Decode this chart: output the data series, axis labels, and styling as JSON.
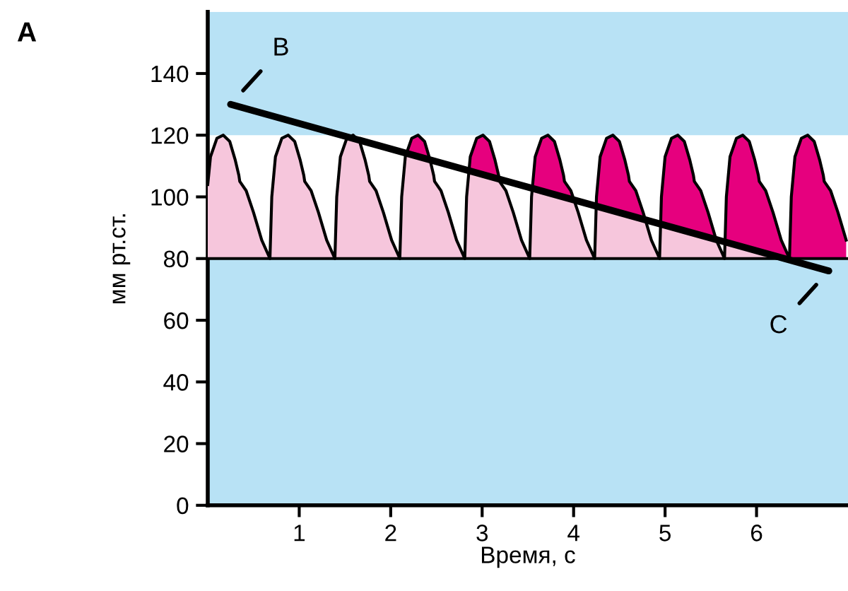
{
  "chart_data": {
    "type": "area",
    "xlabel": "Время, с",
    "ylabel": "мм рт.ст.",
    "xlim": [
      0,
      7
    ],
    "ylim": [
      0,
      160
    ],
    "xticks": [
      1,
      2,
      3,
      4,
      5,
      6
    ],
    "yticks": [
      0,
      20,
      40,
      60,
      80,
      100,
      120,
      140
    ],
    "grid": false,
    "legend": false,
    "bands": [
      {
        "axis": "y",
        "from": 0,
        "to": 80,
        "color": "#b8e2f5"
      },
      {
        "axis": "y",
        "from": 120,
        "to": 160,
        "color": "#b8e2f5"
      }
    ],
    "ref_lines": [
      {
        "axis": "y",
        "value": 80,
        "color": "#000000"
      }
    ],
    "annotations": [
      "A",
      {
        "text": "B",
        "x": 0.25,
        "y": 130
      },
      {
        "text": "C",
        "x": 6.79,
        "y": 76
      }
    ],
    "series": [
      {
        "color": "#e6007e",
        "x": [
          0,
          0.03,
          0.1,
          0.17,
          0.24,
          0.3,
          0.34,
          0.35,
          0.42,
          0.5,
          0.59,
          0.68,
          0.7,
          0.74,
          0.81,
          0.88,
          0.95,
          1.01,
          1.05,
          1.06,
          1.13,
          1.21,
          1.3,
          1.39,
          1.41,
          1.45,
          1.52,
          1.59,
          1.66,
          1.72,
          1.76,
          1.77,
          1.84,
          1.92,
          2.01,
          2.1,
          2.12,
          2.16,
          2.23,
          2.3,
          2.37,
          2.43,
          2.47,
          2.48,
          2.55,
          2.63,
          2.72,
          2.81,
          2.83,
          2.87,
          2.94,
          3.01,
          3.08,
          3.14,
          3.18,
          3.19,
          3.26,
          3.34,
          3.43,
          3.52,
          3.54,
          3.58,
          3.65,
          3.72,
          3.79,
          3.85,
          3.89,
          3.9,
          3.97,
          4.05,
          4.14,
          4.23,
          4.25,
          4.29,
          4.36,
          4.43,
          4.5,
          4.56,
          4.6,
          4.61,
          4.68,
          4.76,
          4.85,
          4.94,
          4.96,
          5.0,
          5.07,
          5.14,
          5.21,
          5.27,
          5.31,
          5.32,
          5.39,
          5.47,
          5.56,
          5.65,
          5.67,
          5.71,
          5.78,
          5.85,
          5.92,
          5.98,
          6.02,
          6.03,
          6.1,
          6.18,
          6.27,
          6.36,
          6.38,
          6.42,
          6.49,
          6.56,
          6.63,
          6.69,
          6.73,
          6.74,
          6.81,
          6.89,
          6.98
        ],
        "values": [
          104,
          113,
          119,
          120,
          118,
          112,
          107,
          105,
          102,
          95,
          86,
          80,
          100,
          113,
          119,
          120,
          118,
          112,
          107,
          105,
          102,
          95,
          86,
          80,
          100,
          113,
          119,
          120,
          118,
          112,
          107,
          105,
          102,
          95,
          86,
          80,
          100,
          113,
          119,
          120,
          118,
          112,
          107,
          105,
          102,
          95,
          86,
          80,
          100,
          113,
          119,
          120,
          118,
          112,
          107,
          105,
          102,
          95,
          86,
          80,
          100,
          113,
          119,
          120,
          118,
          112,
          107,
          105,
          102,
          95,
          86,
          80,
          100,
          113,
          119,
          120,
          118,
          112,
          107,
          105,
          102,
          95,
          86,
          80,
          100,
          113,
          119,
          120,
          118,
          112,
          107,
          105,
          102,
          95,
          86,
          80,
          100,
          113,
          119,
          120,
          118,
          112,
          107,
          105,
          102,
          95,
          86,
          80,
          100,
          113,
          119,
          120,
          118,
          112,
          107,
          105,
          102,
          95,
          86
        ]
      },
      {
        "type": "area",
        "color": "#f6c6dc",
        "x": [
          0,
          6.3
        ],
        "values": [
          132,
          80
        ]
      },
      {
        "type": "line",
        "color": "#000000",
        "x": [
          0.25,
          6.79
        ],
        "values": [
          130,
          76
        ]
      }
    ]
  }
}
